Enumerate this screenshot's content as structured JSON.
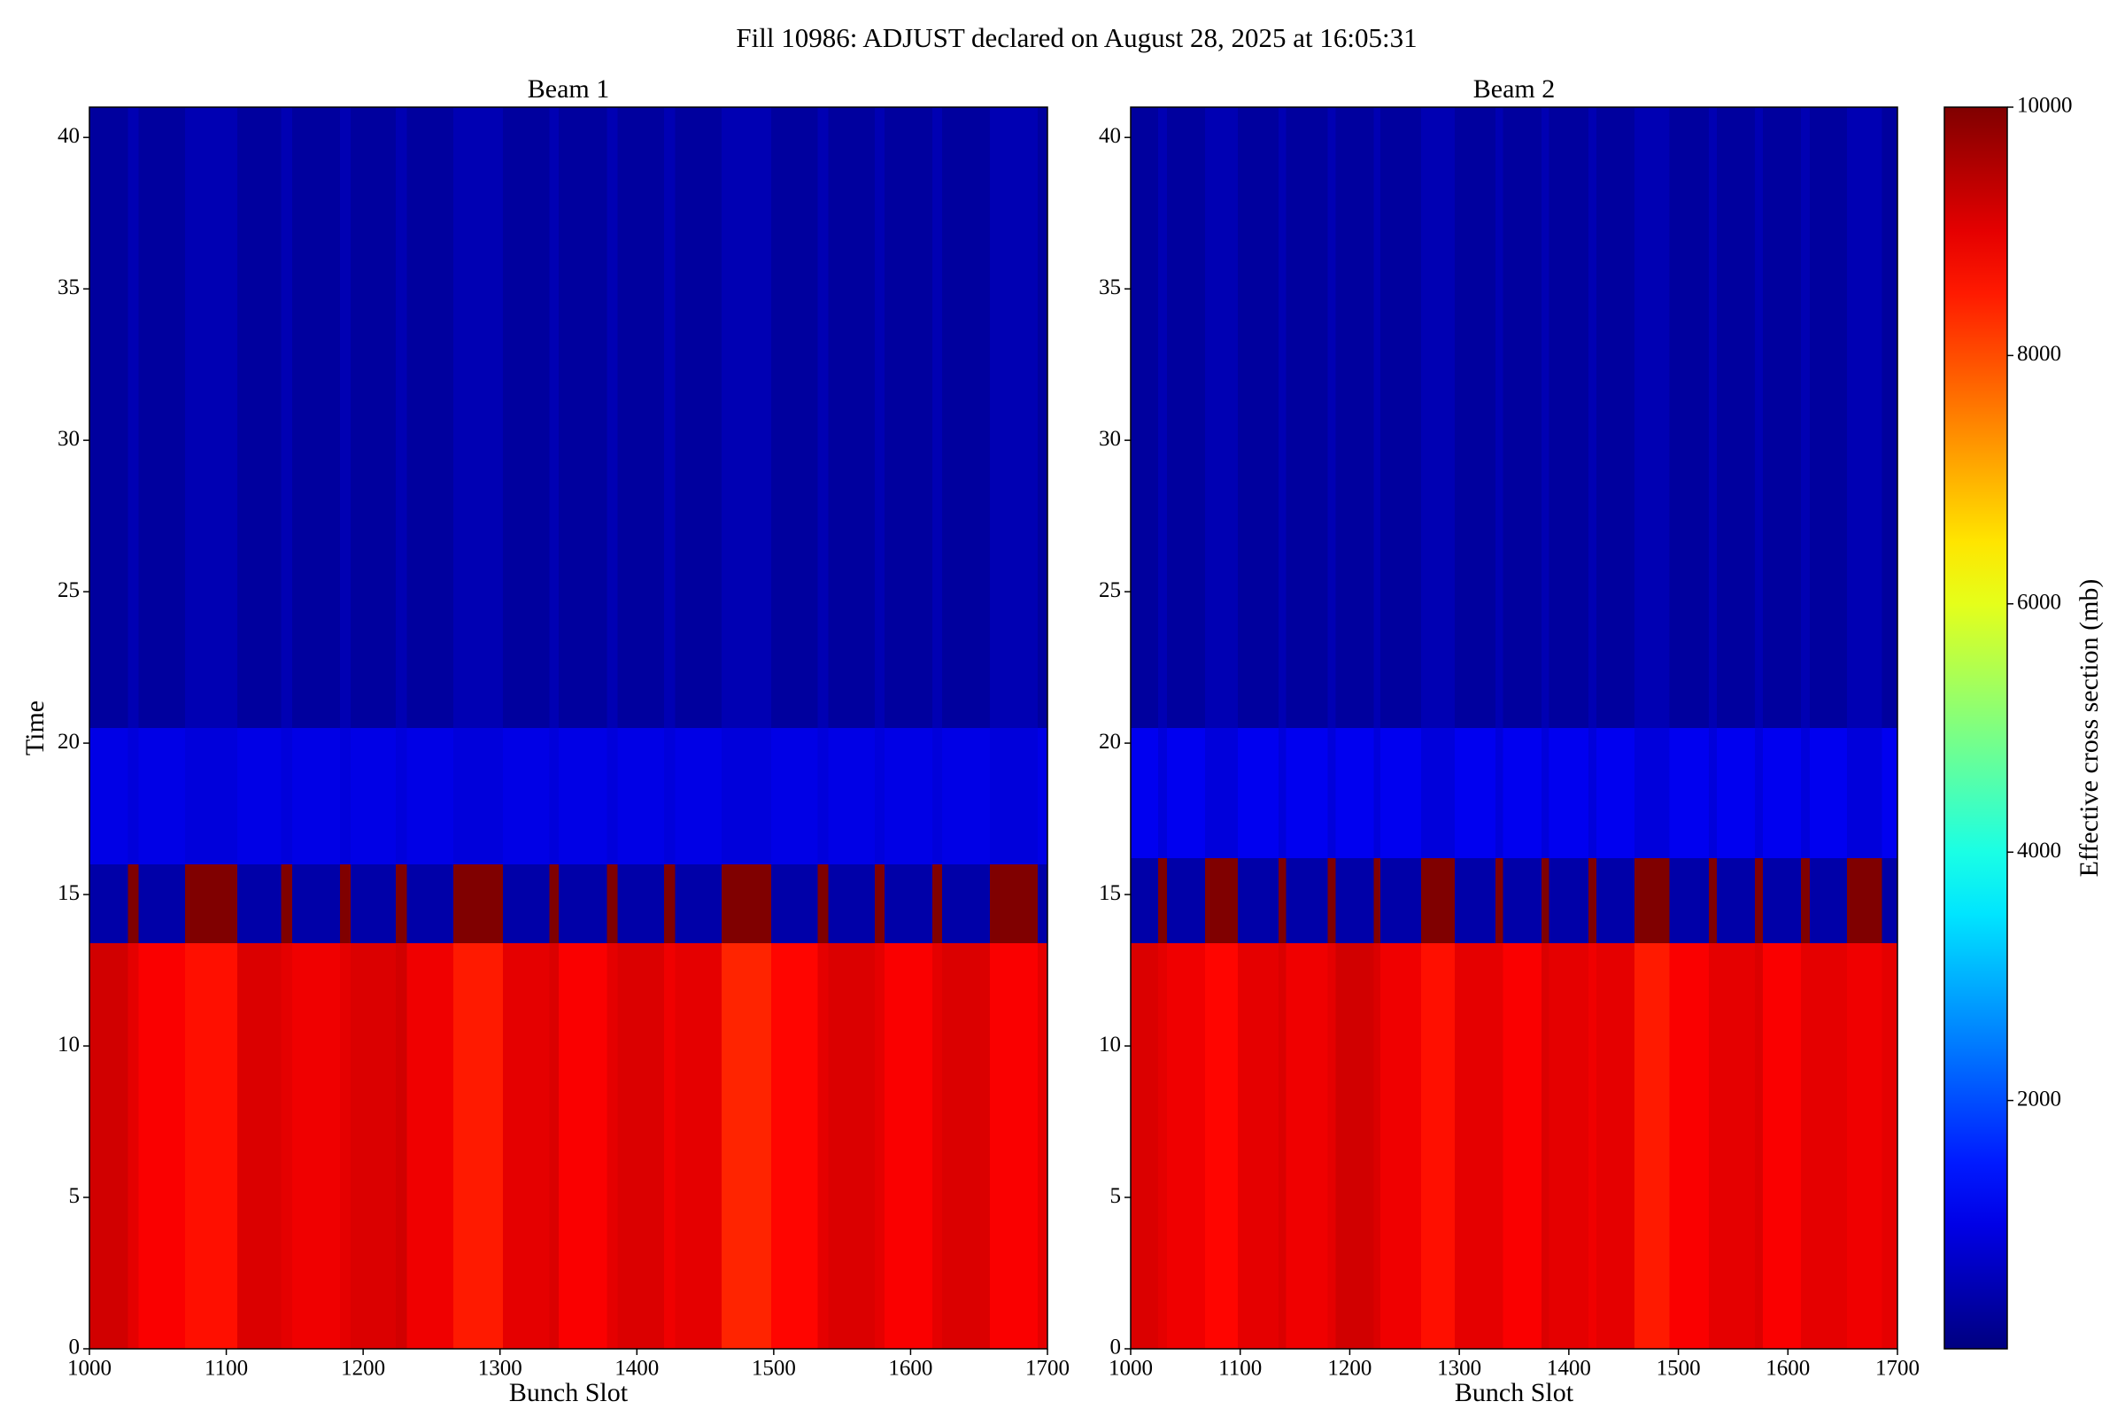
{
  "title": "Fill 10986: ADJUST declared on August 28, 2025 at 16:05:31",
  "chart_data": [
    {
      "type": "heatmap",
      "title": "Beam 1",
      "xlabel": "Bunch Slot",
      "ylabel": "Time",
      "xlim": [
        1000,
        1700
      ],
      "ylim": [
        0,
        41
      ],
      "xticks": [
        1000,
        1100,
        1200,
        1300,
        1400,
        1500,
        1600,
        1700
      ],
      "yticks": [
        0,
        5,
        10,
        15,
        20,
        25,
        30,
        35,
        40
      ],
      "xbins": [
        1000,
        1028,
        1036,
        1070,
        1108,
        1140,
        1148,
        1183,
        1191,
        1224,
        1232,
        1266,
        1302,
        1336,
        1343,
        1378,
        1386,
        1420,
        1428,
        1462,
        1498,
        1532,
        1540,
        1574,
        1581,
        1616,
        1623,
        1658,
        1693,
        1700
      ],
      "ybins": [
        0,
        13.4,
        16,
        20.5,
        41
      ],
      "values": [
        [
          9200,
          9000,
          8800,
          8600,
          9100,
          9000,
          8900,
          9000,
          9100,
          9200,
          8900,
          8500,
          9000,
          9100,
          8800,
          9000,
          9100,
          8900,
          9000,
          8400,
          8700,
          9000,
          9100,
          9000,
          8800,
          9000,
          9100,
          8800,
          9000
        ],
        [
          400,
          10000,
          400,
          10000,
          400,
          10000,
          400,
          10000,
          400,
          10000,
          400,
          10000,
          400,
          10000,
          400,
          10000,
          400,
          10000,
          400,
          10000,
          400,
          10000,
          400,
          10000,
          400,
          10000,
          400,
          10000,
          400
        ],
        [
          1000,
          900,
          1000,
          900,
          1000,
          900,
          1000,
          900,
          1000,
          900,
          1000,
          900,
          1000,
          900,
          1000,
          900,
          1000,
          900,
          1000,
          900,
          1000,
          900,
          1000,
          900,
          1000,
          900,
          1000,
          900,
          1000
        ],
        [
          300,
          500,
          300,
          500,
          300,
          500,
          300,
          500,
          300,
          500,
          300,
          500,
          300,
          500,
          300,
          500,
          300,
          500,
          300,
          500,
          300,
          500,
          300,
          500,
          300,
          500,
          300,
          500,
          300
        ]
      ]
    },
    {
      "type": "heatmap",
      "title": "Beam 2",
      "xlabel": "Bunch Slot",
      "xlim": [
        1000,
        1700
      ],
      "ylim": [
        0,
        41
      ],
      "xticks": [
        1000,
        1100,
        1200,
        1300,
        1400,
        1500,
        1600,
        1700
      ],
      "yticks": [
        0,
        5,
        10,
        15,
        20,
        25,
        30,
        35,
        40
      ],
      "xbins": [
        1000,
        1025,
        1033,
        1068,
        1098,
        1135,
        1142,
        1180,
        1187,
        1222,
        1228,
        1265,
        1296,
        1333,
        1340,
        1375,
        1382,
        1418,
        1425,
        1460,
        1492,
        1528,
        1535,
        1570,
        1577,
        1612,
        1620,
        1654,
        1686,
        1700
      ],
      "ybins": [
        0,
        13.4,
        16.2,
        20.5,
        41
      ],
      "values": [
        [
          9100,
          9000,
          8900,
          8700,
          9000,
          9100,
          8900,
          9000,
          9200,
          9100,
          8900,
          8600,
          9000,
          9000,
          8800,
          9100,
          9000,
          8900,
          9000,
          8500,
          8800,
          9000,
          9000,
          9100,
          8800,
          9000,
          9000,
          8900,
          9000
        ],
        [
          400,
          10000,
          400,
          10000,
          400,
          10000,
          400,
          10000,
          400,
          10000,
          400,
          10000,
          400,
          10000,
          400,
          10000,
          400,
          10000,
          400,
          10000,
          400,
          10000,
          400,
          10000,
          400,
          10000,
          400,
          10000,
          400
        ],
        [
          1100,
          900,
          1100,
          900,
          1100,
          900,
          1100,
          900,
          1100,
          900,
          1100,
          900,
          1100,
          900,
          1100,
          900,
          1100,
          900,
          1100,
          900,
          1100,
          900,
          1100,
          900,
          1100,
          900,
          1100,
          900,
          1100
        ],
        [
          300,
          500,
          300,
          500,
          300,
          500,
          300,
          500,
          300,
          500,
          300,
          500,
          300,
          500,
          300,
          500,
          300,
          500,
          300,
          500,
          300,
          500,
          300,
          500,
          300,
          500,
          300,
          500,
          300
        ]
      ]
    }
  ],
  "colorbar": {
    "label": "Effective cross section (mb)",
    "colormap": "jet",
    "clim": [
      0,
      10000
    ],
    "ticks": [
      2000,
      4000,
      6000,
      8000,
      10000
    ]
  }
}
